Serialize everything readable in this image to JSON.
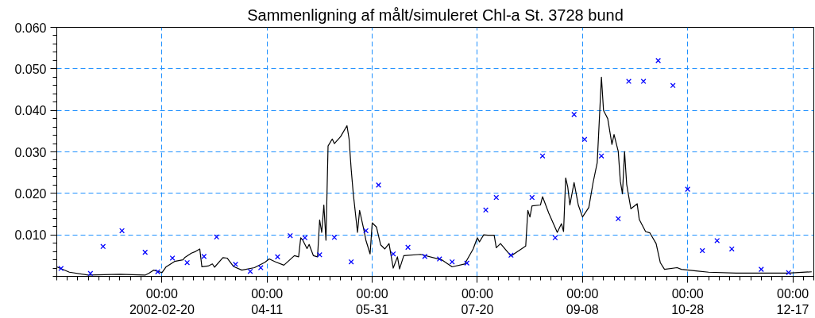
{
  "chart_data": {
    "type": "line",
    "title": "Sammenligning af målt/simuleret Chl-a St. 3728 bund",
    "xlim": [
      "2002-01-01",
      "2002-12-27"
    ],
    "xticks": [
      {
        "value": "2002-02-20",
        "label": "00:00\n2002-02-20"
      },
      {
        "value": "2002-04-11",
        "label": "00:00\n04-11"
      },
      {
        "value": "2002-05-31",
        "label": "00:00\n05-31"
      },
      {
        "value": "2002-07-20",
        "label": "00:00\n07-20"
      },
      {
        "value": "2002-09-08",
        "label": "00:00\n09-08"
      },
      {
        "value": "2002-10-28",
        "label": "00:00\n10-28"
      },
      {
        "value": "2002-12-17",
        "label": "00:00\n12-17"
      }
    ],
    "ylim": [
      0,
      0.06
    ],
    "yticks": [
      {
        "value": 0.01,
        "label": "0.010"
      },
      {
        "value": 0.02,
        "label": "0.020"
      },
      {
        "value": 0.03,
        "label": "0.030"
      },
      {
        "value": 0.04,
        "label": "0.040"
      },
      {
        "value": 0.05,
        "label": "0.050"
      },
      {
        "value": 0.06,
        "label": "0.060"
      }
    ],
    "grid": true,
    "series": [
      {
        "color": "#000000",
        "marker": "none",
        "line_style": "solid",
        "x": [
          "2002-01-01",
          "2002-01-07",
          "2002-01-16",
          "2002-01-31",
          "2002-02-12",
          "2002-02-14",
          "2002-02-16",
          "2002-02-20",
          "2002-02-22",
          "2002-02-26",
          "2002-03-02",
          "2002-03-03",
          "2002-03-06",
          "2002-03-08",
          "2002-03-10",
          "2002-03-11",
          "2002-03-14",
          "2002-03-16",
          "2002-03-17",
          "2002-03-21",
          "2002-03-23",
          "2002-03-26",
          "2002-03-30",
          "2002-04-05",
          "2002-04-10",
          "2002-04-12",
          "2002-04-15",
          "2002-04-19",
          "2002-04-24",
          "2002-04-26",
          "2002-04-27",
          "2002-04-28",
          "2002-04-30",
          "2002-05-01",
          "2002-05-03",
          "2002-05-05",
          "2002-05-06",
          "2002-05-07",
          "2002-05-08",
          "2002-05-09",
          "2002-05-10",
          "2002-05-12",
          "2002-05-13",
          "2002-05-16",
          "2002-05-19",
          "2002-05-20",
          "2002-05-21",
          "2002-05-22",
          "2002-05-24",
          "2002-05-25",
          "2002-05-27",
          "2002-05-28",
          "2002-05-30",
          "2002-05-31",
          "2002-06-02",
          "2002-06-04",
          "2002-06-06",
          "2002-06-08",
          "2002-06-10",
          "2002-06-12",
          "2002-06-13",
          "2002-06-15",
          "2002-06-23",
          "2002-07-03",
          "2002-07-08",
          "2002-07-14",
          "2002-07-18",
          "2002-07-20",
          "2002-07-21",
          "2002-07-23",
          "2002-07-25",
          "2002-07-28",
          "2002-07-29",
          "2002-07-31",
          "2002-08-05",
          "2002-08-12",
          "2002-08-13",
          "2002-08-14",
          "2002-08-15",
          "2002-08-19",
          "2002-08-20",
          "2002-08-23",
          "2002-08-27",
          "2002-08-29",
          "2002-08-30",
          "2002-08-31",
          "2002-09-01",
          "2002-09-02",
          "2002-09-04",
          "2002-09-06",
          "2002-09-08",
          "2002-09-11",
          "2002-09-13",
          "2002-09-15",
          "2002-09-17",
          "2002-09-18",
          "2002-09-20",
          "2002-09-22",
          "2002-09-23",
          "2002-09-25",
          "2002-09-26",
          "2002-09-27",
          "2002-09-28",
          "2002-09-29",
          "2002-10-01",
          "2002-10-04",
          "2002-10-05",
          "2002-10-08",
          "2002-10-10",
          "2002-10-13",
          "2002-10-15",
          "2002-10-17",
          "2002-10-23",
          "2002-10-25",
          "2002-11-01",
          "2002-11-07",
          "2002-11-20",
          "2002-12-15",
          "2002-12-26"
        ],
        "values": [
          0.0023,
          0.001,
          0.0003,
          0.0005,
          0.0003,
          0.0008,
          0.0015,
          0.0009,
          0.0023,
          0.0036,
          0.004,
          0.0046,
          0.0056,
          0.006,
          0.0066,
          0.0023,
          0.0025,
          0.003,
          0.0022,
          0.0045,
          0.0044,
          0.0024,
          0.0015,
          0.0021,
          0.0034,
          0.0042,
          0.0035,
          0.0027,
          0.005,
          0.0047,
          0.0093,
          0.0087,
          0.0067,
          0.0077,
          0.005,
          0.0047,
          0.0136,
          0.0106,
          0.0172,
          0.0087,
          0.0314,
          0.0331,
          0.032,
          0.0337,
          0.0363,
          0.0331,
          0.0258,
          0.0199,
          0.0106,
          0.0159,
          0.0113,
          0.0087,
          0.0054,
          0.0129,
          0.0119,
          0.0076,
          0.0066,
          0.0079,
          0.002,
          0.0047,
          0.0018,
          0.005,
          0.0053,
          0.004,
          0.0023,
          0.003,
          0.0066,
          0.0093,
          0.0083,
          0.01,
          0.0099,
          0.0099,
          0.0069,
          0.0079,
          0.0049,
          0.0073,
          0.0159,
          0.0143,
          0.017,
          0.0172,
          0.0192,
          0.0152,
          0.0106,
          0.0127,
          0.0108,
          0.0237,
          0.0215,
          0.0172,
          0.0226,
          0.0172,
          0.0143,
          0.0166,
          0.0225,
          0.0274,
          0.048,
          0.04,
          0.038,
          0.0318,
          0.0342,
          0.0301,
          0.0229,
          0.0199,
          0.0301,
          0.0222,
          0.0163,
          0.0175,
          0.0137,
          0.0108,
          0.0105,
          0.0079,
          0.0033,
          0.0017,
          0.0021,
          0.0017,
          0.0013,
          0.001,
          0.0008,
          0.0008,
          0.0011
        ]
      },
      {
        "type": "scatter",
        "color": "#0000ff",
        "marker": "cross",
        "x": [
          "2002-01-03",
          "2002-01-17",
          "2002-01-23",
          "2002-02-01",
          "2002-02-12",
          "2002-02-18",
          "2002-02-25",
          "2002-03-04",
          "2002-03-12",
          "2002-03-18",
          "2002-03-27",
          "2002-04-03",
          "2002-04-08",
          "2002-04-16",
          "2002-04-22",
          "2002-04-29",
          "2002-05-06",
          "2002-05-13",
          "2002-05-21",
          "2002-05-28",
          "2002-06-03",
          "2002-06-10",
          "2002-06-17",
          "2002-06-25",
          "2002-07-02",
          "2002-07-08",
          "2002-07-15",
          "2002-07-24",
          "2002-07-29",
          "2002-08-05",
          "2002-08-15",
          "2002-08-20",
          "2002-08-26",
          "2002-09-04",
          "2002-09-09",
          "2002-09-17",
          "2002-09-25",
          "2002-09-30",
          "2002-10-07",
          "2002-10-14",
          "2002-10-21",
          "2002-10-28",
          "2002-11-04",
          "2002-11-11",
          "2002-11-18",
          "2002-12-02",
          "2002-12-15"
        ],
        "values": [
          0.0019,
          0.0007,
          0.0072,
          0.011,
          0.0058,
          0.0011,
          0.0044,
          0.0033,
          0.0048,
          0.0095,
          0.0029,
          0.0012,
          0.0021,
          0.0047,
          0.0098,
          0.0093,
          0.0052,
          0.0094,
          0.0035,
          0.011,
          0.022,
          0.0054,
          0.007,
          0.0048,
          0.0042,
          0.0035,
          0.0032,
          0.016,
          0.019,
          0.0051,
          0.019,
          0.029,
          0.0093,
          0.039,
          0.033,
          0.029,
          0.0139,
          0.047,
          0.047,
          0.052,
          0.046,
          0.021,
          0.0062,
          0.0086,
          0.0066,
          0.0017,
          0.0009
        ]
      }
    ]
  }
}
